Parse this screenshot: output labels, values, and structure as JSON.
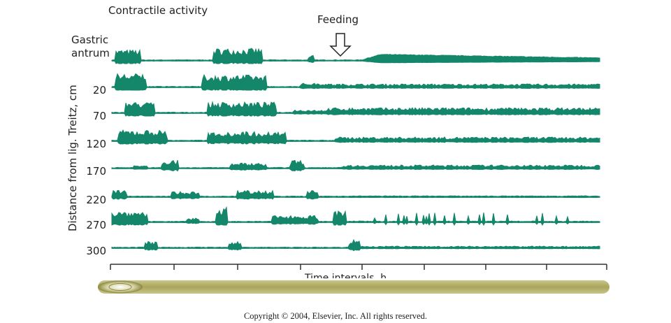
{
  "header": {
    "title": "Contractile activity",
    "event": "Feeding"
  },
  "y_axis_label": "Distance from lig. Treitz, cm",
  "rows": [
    [
      "Gastric",
      "antrum"
    ],
    [
      "20"
    ],
    [
      "70"
    ],
    [
      "120"
    ],
    [
      "170"
    ],
    [
      "220"
    ],
    [
      "270"
    ],
    [
      "300"
    ]
  ],
  "x_axis_label": "Time intervals, h",
  "footer": "Copyright © 2004, Elsevier, Inc. All rights reserved."
}
